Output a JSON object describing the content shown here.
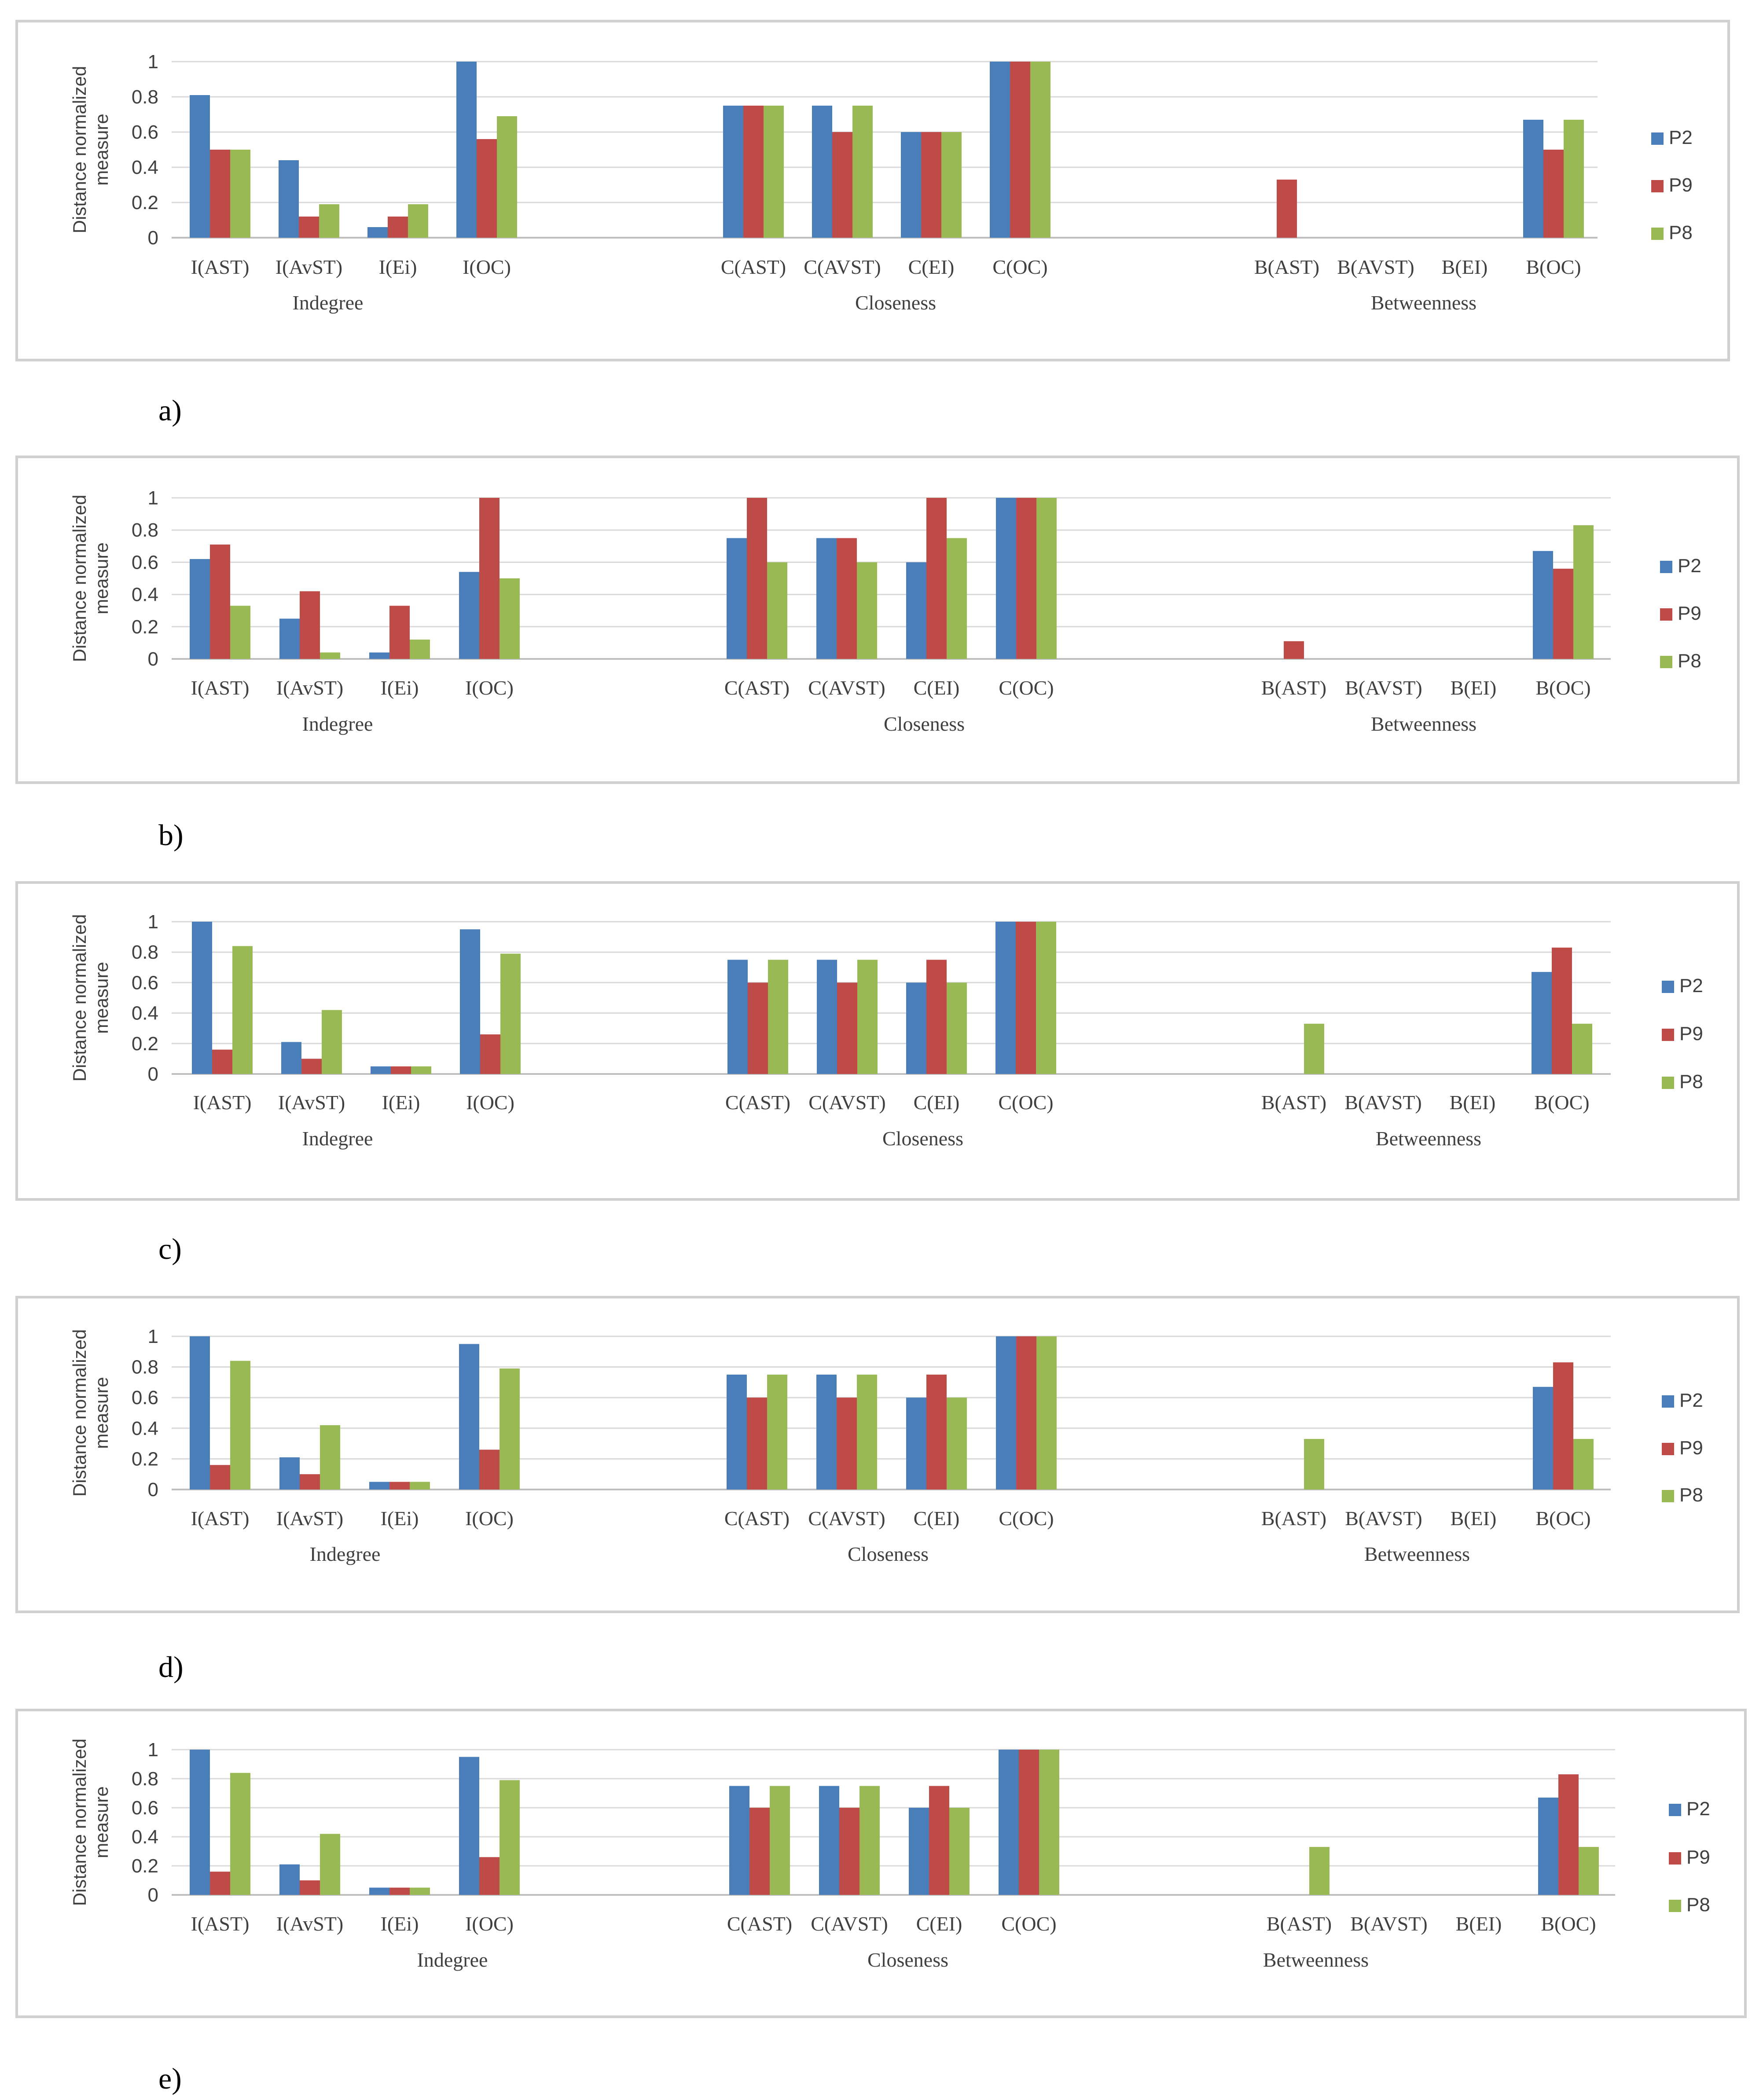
{
  "colors": {
    "P2": "#4a7ebb",
    "P9": "#be4b48",
    "P8": "#98b954"
  },
  "chart_data": [
    {
      "type": "bar",
      "panel_label": "a)",
      "ylabel": "Distance normalized measure",
      "ylim": [
        0,
        1
      ],
      "yticks": [
        "0",
        "0.2",
        "0.4",
        "0.6",
        "0.8",
        "1"
      ],
      "legend_position": "right",
      "groups": [
        "Indegree",
        "Closeness",
        "Betweenness"
      ],
      "categories": [
        "I(AST)",
        "I(AvST)",
        "I(Ei)",
        "I(OC)",
        "C(AST)",
        "C(AVST)",
        "C(EI)",
        "C(OC)",
        "B(AST)",
        "B(AVST)",
        "B(EI)",
        "B(OC)"
      ],
      "series": [
        {
          "name": "P2",
          "values": [
            0.81,
            0.44,
            0.06,
            1.0,
            0.75,
            0.75,
            0.6,
            1.0,
            0,
            0,
            0,
            0.67
          ]
        },
        {
          "name": "P9",
          "values": [
            0.5,
            0.12,
            0.12,
            0.56,
            0.75,
            0.6,
            0.6,
            1.0,
            0.33,
            0,
            0,
            0.5
          ]
        },
        {
          "name": "P8",
          "values": [
            0.5,
            0.19,
            0.19,
            0.69,
            0.75,
            0.75,
            0.6,
            1.0,
            0,
            0,
            0,
            0.67
          ]
        }
      ]
    },
    {
      "type": "bar",
      "panel_label": "b)",
      "ylabel": "Distance normalized measure",
      "ylim": [
        0,
        1
      ],
      "yticks": [
        "0",
        "0.2",
        "0.4",
        "0.6",
        "0.8",
        "1"
      ],
      "legend_position": "right",
      "groups": [
        "Indegree",
        "Closeness",
        "Betweenness"
      ],
      "categories": [
        "I(AST)",
        "I(AvST)",
        "I(Ei)",
        "I(OC)",
        "C(AST)",
        "C(AVST)",
        "C(EI)",
        "C(OC)",
        "B(AST)",
        "B(AVST)",
        "B(EI)",
        "B(OC)"
      ],
      "series": [
        {
          "name": "P2",
          "values": [
            0.62,
            0.25,
            0.04,
            0.54,
            0.75,
            0.75,
            0.6,
            1.0,
            0,
            0,
            0,
            0.67
          ]
        },
        {
          "name": "P9",
          "values": [
            0.71,
            0.42,
            0.33,
            1.0,
            1.0,
            0.75,
            1.0,
            1.0,
            0.11,
            0,
            0,
            0.56
          ]
        },
        {
          "name": "P8",
          "values": [
            0.33,
            0.04,
            0.12,
            0.5,
            0.6,
            0.6,
            0.75,
            1.0,
            0,
            0,
            0,
            0.83
          ]
        }
      ]
    },
    {
      "type": "bar",
      "panel_label": "c)",
      "ylabel": "Distance normalized measure",
      "ylim": [
        0,
        1
      ],
      "yticks": [
        "0",
        "0.2",
        "0.4",
        "0.6",
        "0.8",
        "1"
      ],
      "legend_position": "right",
      "groups": [
        "Indegree",
        "Closeness",
        "Betweenness"
      ],
      "categories": [
        "I(AST)",
        "I(AvST)",
        "I(Ei)",
        "I(OC)",
        "C(AST)",
        "C(AVST)",
        "C(EI)",
        "C(OC)",
        "B(AST)",
        "B(AVST)",
        "B(EI)",
        "B(OC)"
      ],
      "series": [
        {
          "name": "P2",
          "values": [
            1.0,
            0.21,
            0.05,
            0.95,
            0.75,
            0.75,
            0.6,
            1.0,
            0,
            0,
            0,
            0.67
          ]
        },
        {
          "name": "P9",
          "values": [
            0.16,
            0.1,
            0.05,
            0.26,
            0.6,
            0.6,
            0.75,
            1.0,
            0,
            0,
            0,
            0.83
          ]
        },
        {
          "name": "P8",
          "values": [
            0.84,
            0.42,
            0.05,
            0.79,
            0.75,
            0.75,
            0.6,
            1.0,
            0.33,
            0,
            0,
            0.33
          ]
        }
      ]
    },
    {
      "type": "bar",
      "panel_label": "d)",
      "ylabel": "Distance normalized measure",
      "ylim": [
        0,
        1
      ],
      "yticks": [
        "0",
        "0.2",
        "0.4",
        "0.6",
        "0.8",
        "1"
      ],
      "legend_position": "right",
      "groups": [
        "Indegree",
        "Closeness",
        "Betweenness"
      ],
      "categories": [
        "I(AST)",
        "I(AvST)",
        "I(Ei)",
        "I(OC)",
        "C(AST)",
        "C(AVST)",
        "C(EI)",
        "C(OC)",
        "B(AST)",
        "B(AVST)",
        "B(EI)",
        "B(OC)"
      ],
      "series": [
        {
          "name": "P2",
          "values": [
            1.0,
            0.21,
            0.05,
            0.95,
            0.75,
            0.75,
            0.6,
            1.0,
            0,
            0,
            0,
            0.67
          ]
        },
        {
          "name": "P9",
          "values": [
            0.16,
            0.1,
            0.05,
            0.26,
            0.6,
            0.6,
            0.75,
            1.0,
            0,
            0,
            0,
            0.83
          ]
        },
        {
          "name": "P8",
          "values": [
            0.84,
            0.42,
            0.05,
            0.79,
            0.75,
            0.75,
            0.6,
            1.0,
            0.33,
            0,
            0,
            0.33
          ]
        }
      ]
    },
    {
      "type": "bar",
      "panel_label": "e)",
      "ylabel": "Distance normalized measure",
      "ylim": [
        0,
        1
      ],
      "yticks": [
        "0",
        "0.2",
        "0.4",
        "0.6",
        "0.8",
        "1"
      ],
      "legend_position": "right",
      "groups": [
        "Indegree",
        "Closeness",
        "Betweenness"
      ],
      "categories": [
        "I(AST)",
        "I(AvST)",
        "I(Ei)",
        "I(OC)",
        "C(AST)",
        "C(AVST)",
        "C(EI)",
        "C(OC)",
        "B(AST)",
        "B(AVST)",
        "B(EI)",
        "B(OC)"
      ],
      "series": [
        {
          "name": "P2",
          "values": [
            1.0,
            0.21,
            0.05,
            0.95,
            0.75,
            0.75,
            0.6,
            1.0,
            0,
            0,
            0,
            0.67
          ]
        },
        {
          "name": "P9",
          "values": [
            0.16,
            0.1,
            0.05,
            0.26,
            0.6,
            0.6,
            0.75,
            1.0,
            0,
            0,
            0,
            0.83
          ]
        },
        {
          "name": "P8",
          "values": [
            0.84,
            0.42,
            0.05,
            0.79,
            0.75,
            0.75,
            0.6,
            1.0,
            0.33,
            0,
            0,
            0.33
          ]
        }
      ]
    }
  ]
}
